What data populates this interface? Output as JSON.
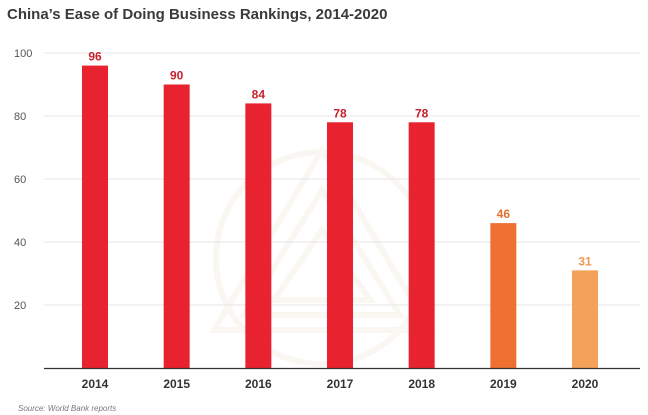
{
  "chart_data": {
    "type": "bar",
    "title": "China’s Ease of Doing Business Rankings, 2014-2020",
    "categories": [
      "2014",
      "2015",
      "2016",
      "2017",
      "2018",
      "2019",
      "2020"
    ],
    "values": [
      96,
      90,
      84,
      78,
      78,
      46,
      31
    ],
    "data_labels": [
      "96",
      "90",
      "84",
      "78",
      "78",
      "46",
      "31"
    ],
    "yticks": [
      "20",
      "40",
      "60",
      "80",
      "100"
    ],
    "ylim": [
      0,
      100
    ],
    "grid": true,
    "xlabel": "",
    "ylabel": "",
    "bar_colors": [
      "#e8232f",
      "#e8232f",
      "#e8232f",
      "#e8232f",
      "#e8232f",
      "#f07031",
      "#f4a25a"
    ],
    "label_colors": [
      "#c8202b",
      "#c8202b",
      "#c8202b",
      "#c8202b",
      "#c8202b",
      "#e2702f",
      "#f0984e"
    ],
    "grid_color": "#e6e6e6",
    "axis_color": "#333333"
  },
  "source": "Source: World Bank reports"
}
